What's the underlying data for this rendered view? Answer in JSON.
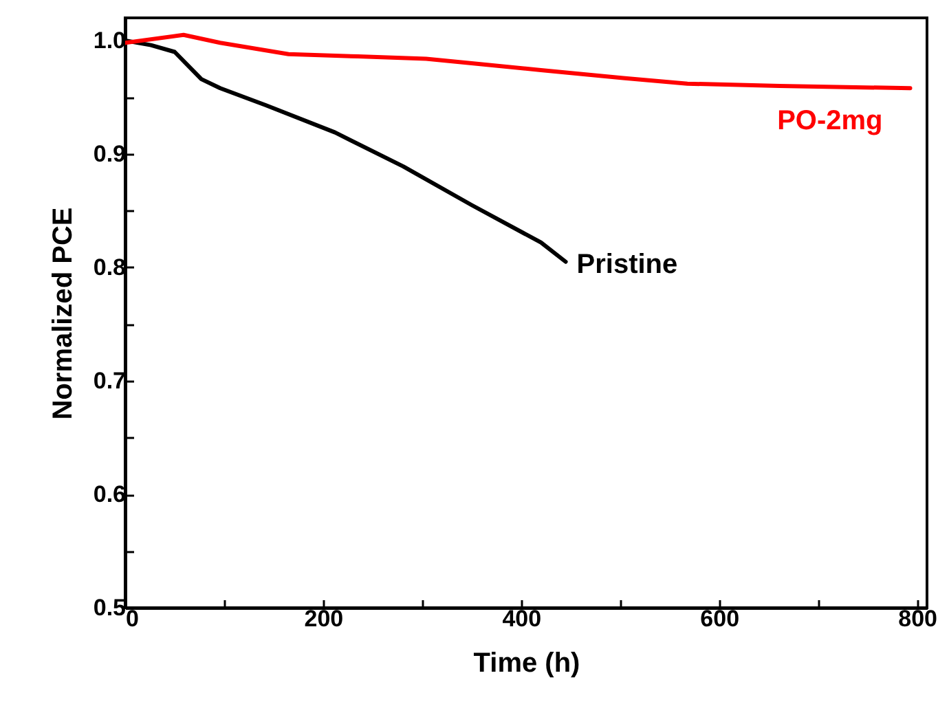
{
  "chart_data": {
    "type": "line",
    "xlabel": "Time (h)",
    "ylabel": "Normalized PCE",
    "xlim": [
      0,
      810
    ],
    "ylim": [
      0.5,
      1.02
    ],
    "xticks": [
      0,
      {
        "value": 100,
        "label": null
      },
      200,
      {
        "value": 300,
        "label": null
      },
      400,
      {
        "value": 500,
        "label": null
      },
      600,
      {
        "value": 700,
        "label": null
      },
      800
    ],
    "yticks": [
      0.5,
      {
        "value": 0.55,
        "label": null
      },
      0.6,
      {
        "value": 0.65,
        "label": null
      },
      0.7,
      {
        "value": 0.75,
        "label": null
      },
      0.8,
      {
        "value": 0.85,
        "label": null
      },
      0.9,
      {
        "value": 0.95,
        "label": null
      },
      {
        "value": 1.0,
        "label": "1.0"
      }
    ],
    "grid": false,
    "legend": false,
    "marker": "none",
    "line_style": "solid",
    "series": [
      {
        "name": "Pristine",
        "color": "#000000",
        "x": [
          0,
          26,
          50,
          77,
          96,
          142,
          212,
          281,
          350,
          420,
          445
        ],
        "values": [
          1.0,
          0.996,
          0.99,
          0.966,
          0.958,
          0.943,
          0.919,
          0.889,
          0.855,
          0.822,
          0.805
        ]
      },
      {
        "name": "PO-2mg",
        "color": "#ff0000",
        "x": [
          0,
          59,
          96,
          165,
          235,
          304,
          350,
          420,
          503,
          568,
          661,
          793
        ],
        "values": [
          0.998,
          1.005,
          0.998,
          0.988,
          0.986,
          0.984,
          0.98,
          0.974,
          0.967,
          0.962,
          0.96,
          0.958
        ]
      }
    ]
  }
}
